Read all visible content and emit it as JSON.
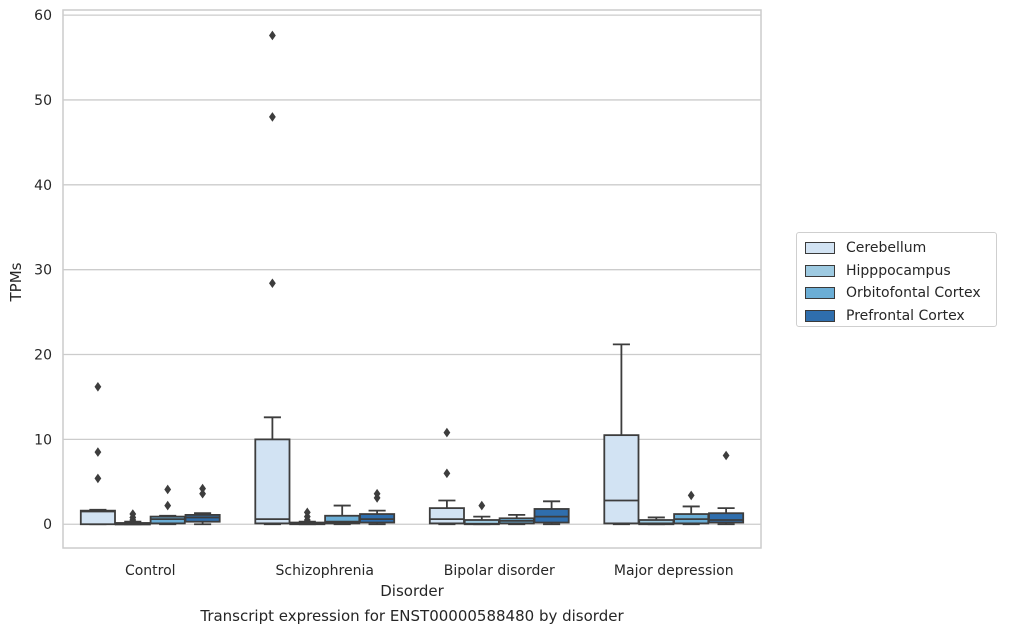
{
  "chart_data": {
    "type": "box",
    "title": "",
    "caption": "Transcript expression for ENST00000588480 by disorder",
    "xlabel": "Disorder",
    "ylabel": "TPMs",
    "ylim": [
      -2.8,
      60.6
    ],
    "yticks": [
      0,
      10,
      20,
      30,
      40,
      50,
      60
    ],
    "grid": "horizontal",
    "legend_position": "right",
    "categories": [
      "Control",
      "Schizophrenia",
      "Bipolar disorder",
      "Major depression"
    ],
    "series": [
      {
        "name": "Cerebellum",
        "color": "#d2e3f3",
        "boxes": [
          {
            "low": 0,
            "q1": 0,
            "median": 1.5,
            "q3": 1.6,
            "high": 1.7,
            "outliers": [
              5.4,
              8.5,
              16.2
            ]
          },
          {
            "low": 0,
            "q1": 0.1,
            "median": 0.6,
            "q3": 10.0,
            "high": 12.6,
            "outliers": [
              28.4,
              48.0,
              57.6
            ]
          },
          {
            "low": 0,
            "q1": 0.1,
            "median": 0.6,
            "q3": 1.9,
            "high": 2.8,
            "outliers": [
              6.0,
              10.8
            ]
          },
          {
            "low": 0,
            "q1": 0.1,
            "median": 2.8,
            "q3": 10.5,
            "high": 21.2,
            "outliers": []
          }
        ]
      },
      {
        "name": "Hipppocampus",
        "color": "#9ecae1",
        "boxes": [
          {
            "low": 0,
            "q1": 0,
            "median": 0.05,
            "q3": 0.15,
            "high": 0.3,
            "outliers": [
              0.5,
              0.8,
              1.2
            ]
          },
          {
            "low": 0,
            "q1": 0,
            "median": 0.05,
            "q3": 0.2,
            "high": 0.3,
            "outliers": [
              0.5,
              0.9,
              1.4
            ]
          },
          {
            "low": 0,
            "q1": 0,
            "median": 0.05,
            "q3": 0.5,
            "high": 0.9,
            "outliers": [
              2.2
            ]
          },
          {
            "low": 0,
            "q1": 0,
            "median": 0.1,
            "q3": 0.5,
            "high": 0.8,
            "outliers": []
          }
        ]
      },
      {
        "name": "Orbitofontal Cortex",
        "color": "#6baed6",
        "boxes": [
          {
            "low": 0,
            "q1": 0.1,
            "median": 0.6,
            "q3": 0.9,
            "high": 1.0,
            "outliers": [
              2.2,
              4.1
            ]
          },
          {
            "low": 0,
            "q1": 0.1,
            "median": 0.3,
            "q3": 1.0,
            "high": 2.2,
            "outliers": []
          },
          {
            "low": 0,
            "q1": 0.1,
            "median": 0.4,
            "q3": 0.7,
            "high": 1.1,
            "outliers": []
          },
          {
            "low": 0,
            "q1": 0.1,
            "median": 0.6,
            "q3": 1.2,
            "high": 2.1,
            "outliers": [
              3.4
            ]
          }
        ]
      },
      {
        "name": "Prefrontal Cortex",
        "color": "#2f6ead",
        "boxes": [
          {
            "low": 0,
            "q1": 0.3,
            "median": 0.8,
            "q3": 1.1,
            "high": 1.3,
            "outliers": [
              3.6,
              4.2
            ]
          },
          {
            "low": 0,
            "q1": 0.2,
            "median": 0.6,
            "q3": 1.2,
            "high": 1.6,
            "outliers": [
              3.1,
              3.6
            ]
          },
          {
            "low": 0,
            "q1": 0.2,
            "median": 0.9,
            "q3": 1.8,
            "high": 2.7,
            "outliers": []
          },
          {
            "low": 0,
            "q1": 0.2,
            "median": 0.5,
            "q3": 1.3,
            "high": 1.9,
            "outliers": [
              8.1
            ]
          }
        ]
      }
    ]
  }
}
